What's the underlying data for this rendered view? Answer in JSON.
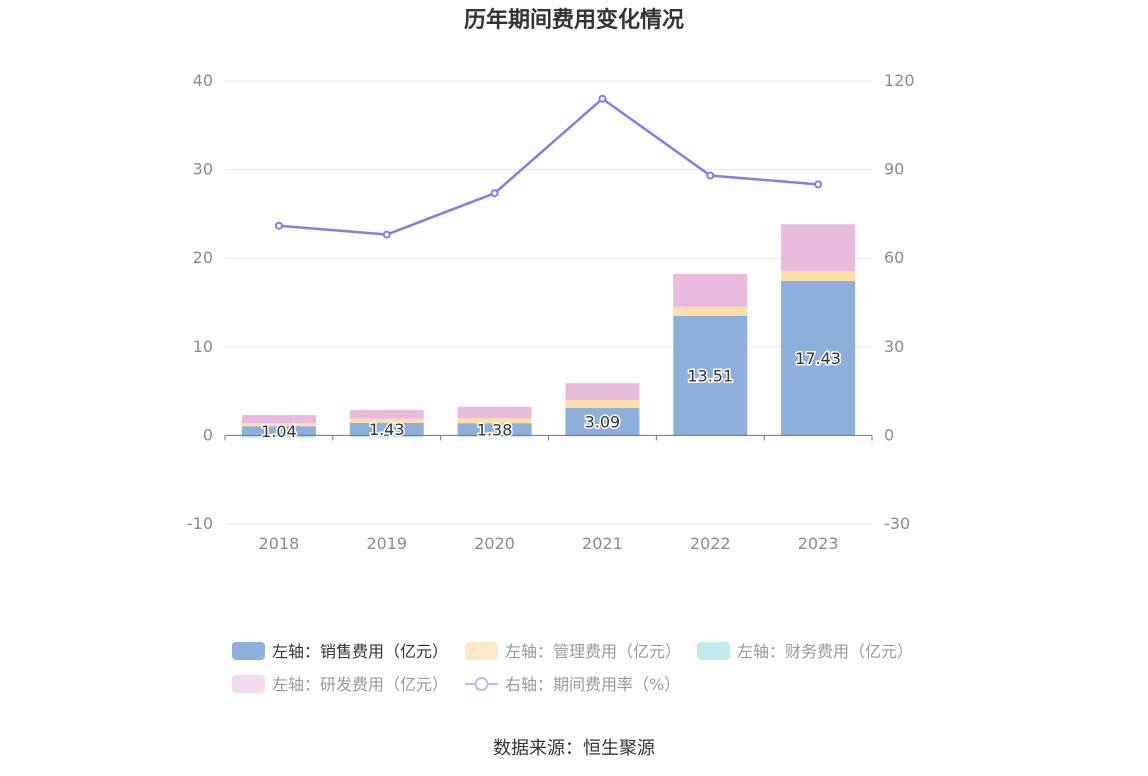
{
  "chart_data": {
    "type": "bar",
    "title": "历年期间费用变化情况",
    "source": "数据来源：恒生聚源",
    "categories": [
      "2018",
      "2019",
      "2020",
      "2021",
      "2022",
      "2023"
    ],
    "left_axis": {
      "ylim": [
        -10,
        40
      ],
      "ticks": [
        "40",
        "30",
        "20",
        "10",
        "0",
        "-10"
      ],
      "tick_values": [
        40,
        30,
        20,
        10,
        0,
        -10
      ]
    },
    "right_axis": {
      "ylim": [
        -30,
        120
      ],
      "ticks": [
        "120",
        "90",
        "60",
        "30",
        "0",
        "-30"
      ],
      "tick_values": [
        120,
        90,
        60,
        30,
        0,
        -30
      ]
    },
    "series": [
      {
        "name": "左轴：销售费用（亿元）",
        "type": "bar",
        "stack": "left",
        "color": "#8eaedb",
        "values": [
          1.04,
          1.43,
          1.38,
          3.09,
          13.51,
          17.43
        ],
        "labels": [
          "1.04",
          "1.43",
          "1.38",
          "3.09",
          "13.51",
          "17.43"
        ]
      },
      {
        "name": "左轴：管理费用（亿元）",
        "type": "bar",
        "stack": "left",
        "color": "#fde0a7",
        "values": [
          0.35,
          0.45,
          0.55,
          0.9,
          1.0,
          1.1
        ]
      },
      {
        "name": "左轴：财务费用（亿元）",
        "type": "bar",
        "stack": "left",
        "color": "#b7e4e8",
        "values": [
          -0.25,
          -0.2,
          -0.15,
          -0.1,
          -0.05,
          -0.05
        ]
      },
      {
        "name": "左轴：研发费用（亿元）",
        "type": "bar",
        "stack": "left",
        "color": "#e8bbdc",
        "values": [
          0.9,
          1.0,
          1.3,
          1.9,
          3.7,
          5.3
        ]
      },
      {
        "name": "右轴：期间费用率（%）",
        "type": "line",
        "axis": "right",
        "color": "#7b80ee",
        "values": [
          71,
          68,
          82,
          114,
          88,
          85
        ]
      }
    ],
    "legend_position": "bottom",
    "grid": true
  }
}
